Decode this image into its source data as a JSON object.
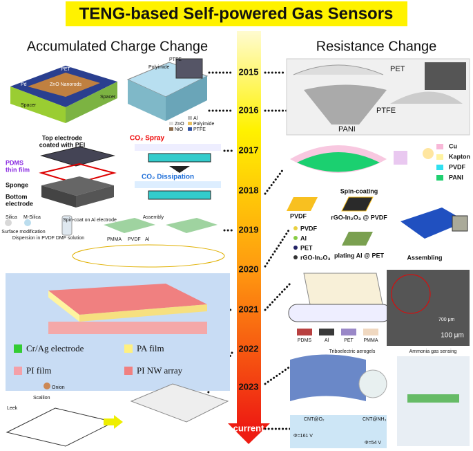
{
  "title": "TENG-based Self-powered Gas Sensors",
  "left_heading": "Accumulated Charge Change",
  "right_heading": "Resistance Change",
  "timeline": [
    "2015",
    "2016",
    "2017",
    "2018",
    "2019",
    "2020",
    "2021",
    "2022",
    "2023",
    "current"
  ],
  "left_panels": [
    {
      "labels": [
        "PET",
        "Pd",
        "ZnO Nanorods",
        "Spacer",
        "Spacer"
      ]
    },
    {
      "labels": [
        "PTFE",
        "Polyimide",
        "ZnO",
        "NiO",
        "Al",
        "Polyimide",
        "PTFE"
      ]
    },
    {
      "labels": [
        "Top electrode",
        "coated with PEI",
        "PDMS",
        "thin film",
        "Sponge",
        "Bottom",
        "electrode"
      ]
    },
    {
      "labels": [
        "CO₂ Spray",
        "CO₂ Dissipation"
      ]
    },
    {
      "labels": [
        "Silica",
        "M-Silica",
        "Surface modification",
        "Dispersion in PVDF DMF solution",
        "Spin-coat on Al electrode",
        "Assembly",
        "PMMA",
        "PVDF",
        "Al"
      ]
    },
    {
      "labels": [
        "Cr/Ag electrode",
        "PA film",
        "PI film",
        "PI NW array"
      ]
    },
    {
      "labels": [
        "Onion",
        "Scallion",
        "Leek"
      ]
    }
  ],
  "right_panels": [
    {
      "labels": [
        "PET",
        "PTFE",
        "PANI"
      ]
    },
    {
      "labels": [
        "Cu",
        "Kapton",
        "PVDF",
        "PANI"
      ]
    },
    {
      "labels": [
        "PVDF",
        "Spin-coating",
        "rGO-In₂O₃ @ PVDF",
        "PVDF",
        "Al",
        "PET",
        "rGO-In₂O₃",
        "plating Al @ PET",
        "Assembling"
      ]
    },
    {
      "labels": [
        "PDMS",
        "Al",
        "PET",
        "PMMA",
        "700 μm",
        "100 μm"
      ]
    },
    {
      "labels": [
        "Triboelectric aerogels",
        "Ammonia gas sensing",
        "CNT@O₂",
        "CNT@NH₃",
        "Φ=161 V",
        "Φ=54 V"
      ]
    }
  ]
}
